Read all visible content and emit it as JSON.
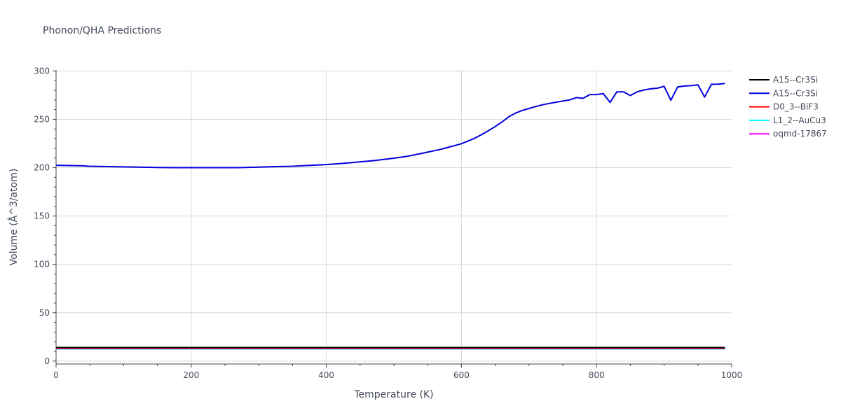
{
  "chart_data": {
    "type": "line",
    "title": "Phonon/QHA Predictions",
    "xlabel": "Temperature (K)",
    "ylabel": "Volume (Å^3/atom)",
    "xlim": [
      0,
      1000
    ],
    "ylim": [
      -3,
      301
    ],
    "x_ticks": [
      0,
      200,
      400,
      600,
      800,
      1000
    ],
    "y_ticks": [
      0,
      50,
      100,
      150,
      200,
      250,
      300
    ],
    "grid": true,
    "legend_position": "top-right",
    "series": [
      {
        "name": "A15--Cr3Si",
        "color": "#000000",
        "x": [
          0,
          990
        ],
        "y": [
          14.0,
          14.0
        ]
      },
      {
        "name": "A15--Cr3Si",
        "color": "#0000dd",
        "x": [
          0,
          20,
          40,
          50,
          100,
          150,
          175,
          200,
          270,
          300,
          350,
          400,
          420,
          440,
          470,
          500,
          520,
          540,
          570,
          600,
          610,
          620,
          630,
          640,
          650,
          660,
          670,
          680,
          690,
          700,
          710,
          720,
          730,
          740,
          750,
          760,
          770,
          780,
          790,
          800,
          810,
          820,
          830,
          840,
          850,
          860,
          870,
          880,
          890,
          900,
          910,
          920,
          930,
          940,
          950,
          960,
          970,
          980,
          990
        ],
        "y": [
          202.5,
          202.2,
          201.9,
          201.5,
          200.8,
          200.2,
          200.0,
          200.0,
          200.0,
          200.6,
          201.5,
          203.2,
          204.2,
          205.4,
          207.3,
          209.8,
          211.8,
          214.6,
          219.1,
          224.8,
          227.6,
          230.6,
          234.3,
          238.3,
          242.5,
          247.2,
          252.6,
          256.4,
          259.2,
          261.2,
          263.2,
          265.0,
          266.4,
          267.7,
          268.9,
          270.0,
          272.5,
          271.7,
          275.6,
          275.6,
          276.5,
          267.5,
          278.4,
          278.4,
          274.6,
          278.4,
          280.3,
          281.5,
          282.2,
          284.1,
          269.7,
          283.4,
          284.4,
          284.8,
          285.7,
          273.0,
          286.2,
          286.3,
          287.1
        ]
      },
      {
        "name": "D0_3--BiF3",
        "color": "#ff0000",
        "x": [
          0,
          990
        ],
        "y": [
          13.5,
          13.5
        ]
      },
      {
        "name": "L1_2--AuCu3",
        "color": "#00ffff",
        "x": [
          0,
          990
        ],
        "y": [
          12.6,
          12.6
        ]
      },
      {
        "name": "oqmd-17867",
        "color": "#ff00ff",
        "x": [
          0,
          990
        ],
        "y": [
          13.1,
          13.1
        ]
      }
    ]
  }
}
